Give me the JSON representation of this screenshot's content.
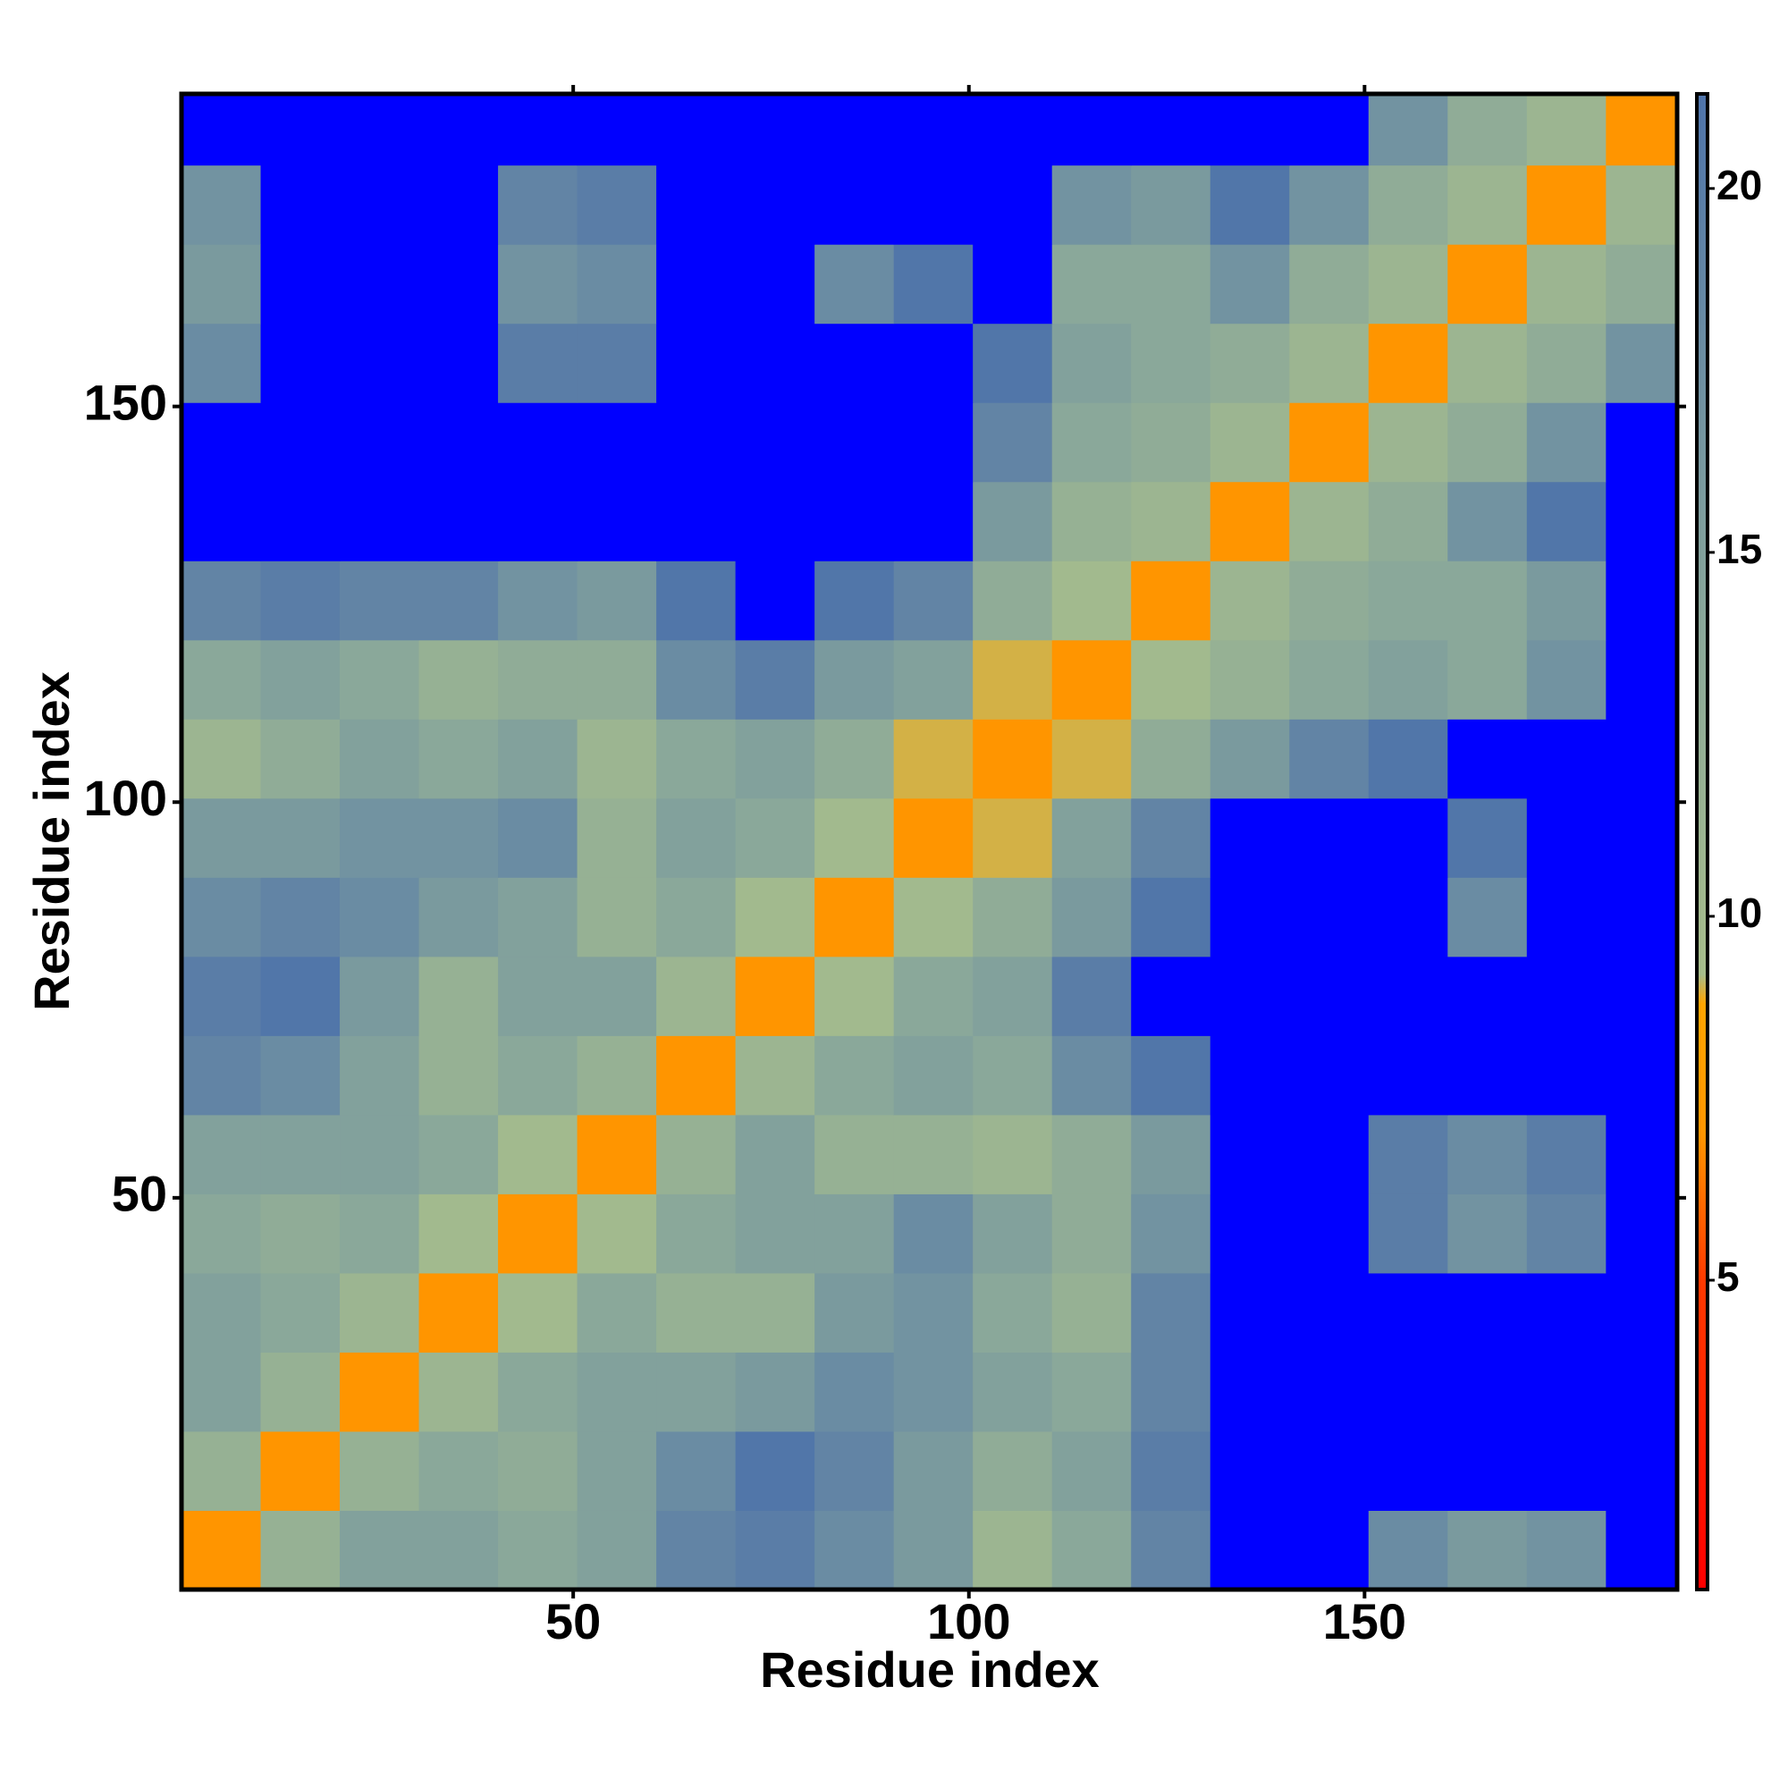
{
  "chart_data": {
    "type": "heatmap",
    "xlabel": "Residue index",
    "ylabel": "Residue index",
    "xlim": [
      0.5,
      189.5
    ],
    "ylim": [
      0.5,
      189.5
    ],
    "xticks": [
      50,
      100,
      150
    ],
    "yticks": [
      50,
      100,
      150
    ],
    "bins": [
      0.5,
      10.5,
      20.5,
      30.5,
      40.5,
      50.5,
      60.5,
      70.5,
      80.5,
      90.5,
      100.5,
      110.5,
      120.5,
      130.5,
      140.5,
      150.5,
      160.5,
      170.5,
      180.5,
      189.5
    ],
    "z": [
      [
        7,
        12,
        15,
        15,
        14,
        15,
        19,
        20,
        18,
        16,
        11,
        14,
        19,
        22,
        22,
        18,
        16,
        17,
        22
      ],
      [
        12,
        7,
        12,
        14,
        13,
        15,
        18,
        21,
        19,
        16,
        13,
        15,
        20,
        22,
        22,
        22,
        22,
        22,
        22
      ],
      [
        15,
        12,
        7,
        11,
        14,
        15,
        15,
        16,
        18,
        17,
        15,
        14,
        19,
        22,
        22,
        22,
        22,
        22,
        22
      ],
      [
        15,
        14,
        11,
        7,
        10,
        14,
        12,
        12,
        16,
        17,
        14,
        12,
        19,
        22,
        22,
        22,
        22,
        22,
        22
      ],
      [
        14,
        13,
        14,
        10,
        7,
        10,
        14,
        15,
        15,
        18,
        15,
        13,
        17,
        22,
        22,
        20,
        17,
        19,
        22
      ],
      [
        15,
        15,
        15,
        14,
        10,
        7,
        12,
        15,
        12,
        12,
        11,
        13,
        16,
        22,
        22,
        20,
        18,
        20,
        22
      ],
      [
        19,
        18,
        15,
        12,
        14,
        12,
        7,
        11,
        14,
        15,
        14,
        18,
        21,
        22,
        22,
        22,
        22,
        22,
        22
      ],
      [
        20,
        21,
        16,
        12,
        15,
        15,
        11,
        7,
        10,
        14,
        15,
        20,
        22,
        22,
        22,
        22,
        22,
        22,
        22
      ],
      [
        18,
        19,
        18,
        16,
        15,
        12,
        14,
        10,
        7,
        10,
        13,
        16,
        21,
        22,
        22,
        22,
        18,
        22,
        22
      ],
      [
        16,
        16,
        17,
        17,
        18,
        12,
        15,
        14,
        10,
        7,
        9,
        15,
        19,
        22,
        22,
        22,
        21,
        22,
        22
      ],
      [
        11,
        13,
        15,
        14,
        15,
        11,
        14,
        15,
        13,
        9,
        7,
        9,
        13,
        16,
        19,
        21,
        22,
        22,
        22
      ],
      [
        14,
        15,
        14,
        12,
        13,
        13,
        18,
        20,
        16,
        15,
        9,
        7,
        10,
        12,
        14,
        15,
        14,
        17,
        22
      ],
      [
        19,
        20,
        19,
        19,
        17,
        16,
        21,
        22,
        21,
        19,
        13,
        10,
        7,
        11,
        13,
        14,
        14,
        16,
        22
      ],
      [
        22,
        22,
        22,
        22,
        22,
        22,
        22,
        22,
        22,
        22,
        16,
        12,
        11,
        7,
        11,
        13,
        17,
        21,
        22
      ],
      [
        22,
        22,
        22,
        22,
        22,
        22,
        22,
        22,
        22,
        22,
        19,
        14,
        13,
        11,
        7,
        11,
        13,
        17,
        22
      ],
      [
        18,
        22,
        22,
        22,
        20,
        20,
        22,
        22,
        22,
        22,
        21,
        15,
        14,
        13,
        11,
        7,
        11,
        13,
        17
      ],
      [
        16,
        22,
        22,
        22,
        17,
        18,
        22,
        22,
        18,
        21,
        22,
        14,
        14,
        17,
        13,
        11,
        7,
        11,
        13
      ],
      [
        17,
        22,
        22,
        22,
        19,
        20,
        22,
        22,
        22,
        22,
        22,
        17,
        16,
        21,
        17,
        13,
        11,
        7,
        11
      ],
      [
        22,
        22,
        22,
        22,
        22,
        22,
        22,
        22,
        22,
        22,
        22,
        22,
        22,
        22,
        22,
        17,
        13,
        11,
        7
      ]
    ],
    "zlim": [
      0.75,
      21.3
    ],
    "cticks": [
      5,
      10,
      15,
      20
    ],
    "colorscale": [
      [
        0.75,
        "#ff0000"
      ],
      [
        5,
        "#ff3a00"
      ],
      [
        7,
        "#ff9500"
      ],
      [
        8.8,
        "#ffa500"
      ],
      [
        9.2,
        "#a7bd8b"
      ],
      [
        14,
        "#8aa89a"
      ],
      [
        21.3,
        "#4f74aa"
      ]
    ],
    "over_color": "#0000ff"
  }
}
